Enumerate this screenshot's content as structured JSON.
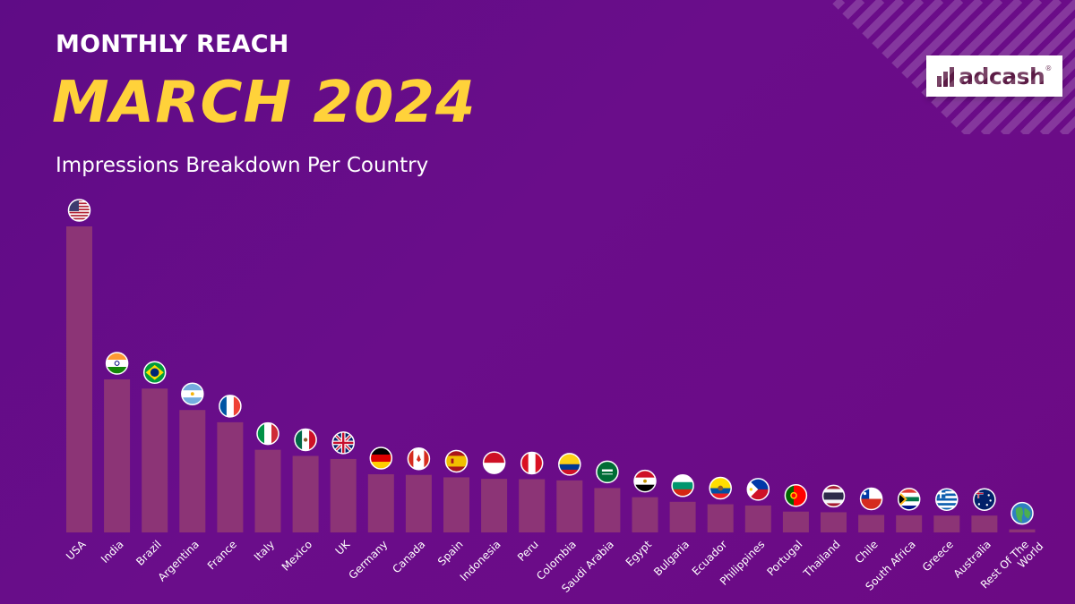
{
  "header": {
    "kicker": "MONTHLY REACH",
    "title": "MARCH 2024",
    "subtitle": "Impressions Breakdown Per Country"
  },
  "logo": {
    "text": "adcash",
    "mark": "®"
  },
  "colors": {
    "background": "#6a0d8a",
    "bar": "#8c3476",
    "title_accent": "#ffd23a",
    "text": "#ffffff"
  },
  "chart_data": {
    "type": "bar",
    "title": "",
    "xlabel": "",
    "ylabel": "",
    "y_axis_shown": false,
    "grid": false,
    "categories": [
      "USA",
      "India",
      "Brazil",
      "Argentina",
      "France",
      "Italy",
      "Mexico",
      "UK",
      "Germany",
      "Canada",
      "Spain",
      "Indonesia",
      "Peru",
      "Colombia",
      "Saudi Arabia",
      "Egypt",
      "Bulgaria",
      "Ecuador",
      "Philippines",
      "Portugal",
      "Thailand",
      "Chile",
      "South Africa",
      "Greece",
      "Australia",
      "Rest Of The World"
    ],
    "values": [
      100,
      50,
      47,
      40,
      36,
      27,
      25,
      24,
      19,
      18.8,
      18,
      17.5,
      17.4,
      17,
      14.5,
      11.5,
      10,
      9.2,
      8.8,
      6.8,
      6.6,
      5.7,
      5.6,
      5.5,
      5.5,
      1
    ],
    "ylim": [
      0,
      100
    ],
    "flag_icons": [
      "flag-usa-icon",
      "flag-india-icon",
      "flag-brazil-icon",
      "flag-argentina-icon",
      "flag-france-icon",
      "flag-italy-icon",
      "flag-mexico-icon",
      "flag-uk-icon",
      "flag-germany-icon",
      "flag-canada-icon",
      "flag-spain-icon",
      "flag-indonesia-icon",
      "flag-peru-icon",
      "flag-colombia-icon",
      "flag-saudi-arabia-icon",
      "flag-egypt-icon",
      "flag-bulgaria-icon",
      "flag-ecuador-icon",
      "flag-philippines-icon",
      "flag-portugal-icon",
      "flag-thailand-icon",
      "flag-chile-icon",
      "flag-south-africa-icon",
      "flag-greece-icon",
      "flag-australia-icon",
      "globe-icon"
    ]
  }
}
